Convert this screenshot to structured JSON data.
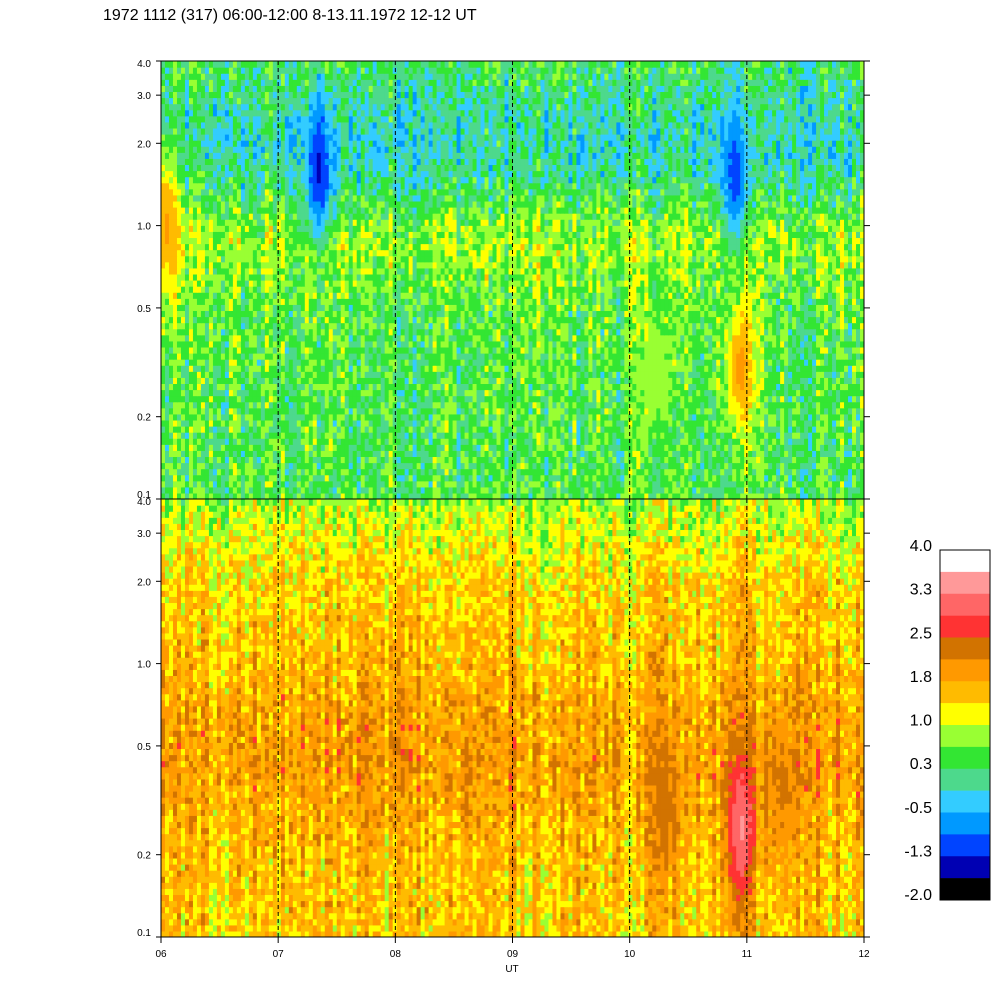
{
  "header": {
    "title": "1972 1112 (317) 06:00-12:00 8-13.11.1972  12-12 UT"
  },
  "chart_data": {
    "type": "heatmap",
    "xlabel": "UT",
    "x_ticks": [
      "06",
      "07",
      "08",
      "09",
      "10",
      "11",
      "12"
    ],
    "xlim": [
      6,
      12
    ],
    "day_markers_hour": [
      7,
      8,
      9,
      10,
      11
    ],
    "panels": [
      {
        "name": "upper",
        "y_scale": "log",
        "ylim": [
          0.1,
          4.0
        ],
        "y_ticks": [
          {
            "value": 4.0,
            "label": "4.0"
          },
          {
            "value": 3.0,
            "label": "3.0"
          },
          {
            "value": 2.0,
            "label": "2.0"
          },
          {
            "value": 1.0,
            "label": "1.0"
          },
          {
            "value": 0.5,
            "label": "0.5"
          },
          {
            "value": 0.2,
            "label": "0.2"
          },
          {
            "value": 0.1,
            "label": "0.1"
          }
        ],
        "profile_levels": [
          {
            "y": 0.1,
            "level": 0.4
          },
          {
            "y": 0.2,
            "level": 0.4
          },
          {
            "y": 0.5,
            "level": 0.5
          },
          {
            "y": 0.8,
            "level": 0.8
          },
          {
            "y": 1.0,
            "level": 0.7
          },
          {
            "y": 1.5,
            "level": 0.1
          },
          {
            "y": 2.0,
            "level": -0.1
          },
          {
            "y": 3.0,
            "level": 0.1
          },
          {
            "y": 4.0,
            "level": 0.3
          }
        ],
        "hotspots": [
          {
            "x": 7.35,
            "y": 1.6,
            "level": -1.3
          },
          {
            "x": 10.9,
            "y": 1.5,
            "level": -1.0
          },
          {
            "x": 10.95,
            "y": 0.3,
            "level": 1.9
          },
          {
            "x": 6.05,
            "y": 1.0,
            "level": 1.8
          },
          {
            "x": 10.2,
            "y": 0.3,
            "level": 1.0
          }
        ]
      },
      {
        "name": "lower",
        "y_scale": "log",
        "ylim": [
          0.1,
          4.0
        ],
        "y_ticks": [
          {
            "value": 4.0,
            "label": "4.0"
          },
          {
            "value": 3.0,
            "label": "3.0"
          },
          {
            "value": 2.0,
            "label": "2.0"
          },
          {
            "value": 1.0,
            "label": "1.0"
          },
          {
            "value": 0.5,
            "label": "0.5"
          },
          {
            "value": 0.2,
            "label": "0.2"
          },
          {
            "value": 0.1,
            "label": "0.1"
          }
        ],
        "profile_levels": [
          {
            "y": 0.1,
            "level": 1.5
          },
          {
            "y": 0.2,
            "level": 1.6
          },
          {
            "y": 0.4,
            "level": 1.9
          },
          {
            "y": 0.7,
            "level": 1.8
          },
          {
            "y": 1.0,
            "level": 1.6
          },
          {
            "y": 2.0,
            "level": 1.4
          },
          {
            "y": 3.0,
            "level": 1.1
          },
          {
            "y": 4.0,
            "level": 0.8
          }
        ],
        "hotspots": [
          {
            "x": 10.95,
            "y": 0.25,
            "level": 3.3
          },
          {
            "x": 10.3,
            "y": 0.3,
            "level": 2.3
          },
          {
            "x": 11.3,
            "y": 0.35,
            "level": 2.2
          }
        ]
      }
    ],
    "colorbar": {
      "labels": [
        "4.0",
        "3.3",
        "2.5",
        "1.8",
        "1.0",
        "0.3",
        "-0.5",
        "-1.3",
        "-2.0"
      ],
      "range": [
        -2.0,
        4.0
      ],
      "colors_top_to_bottom": [
        "#ffffff",
        "#ff9999",
        "#ff6666",
        "#ff3333",
        "#d27300",
        "#ff9900",
        "#ffbb00",
        "#ffff00",
        "#99ff33",
        "#33e633",
        "#4dd98c",
        "#33ccff",
        "#0099ff",
        "#0044ff",
        "#0000b3",
        "#000000"
      ]
    }
  }
}
